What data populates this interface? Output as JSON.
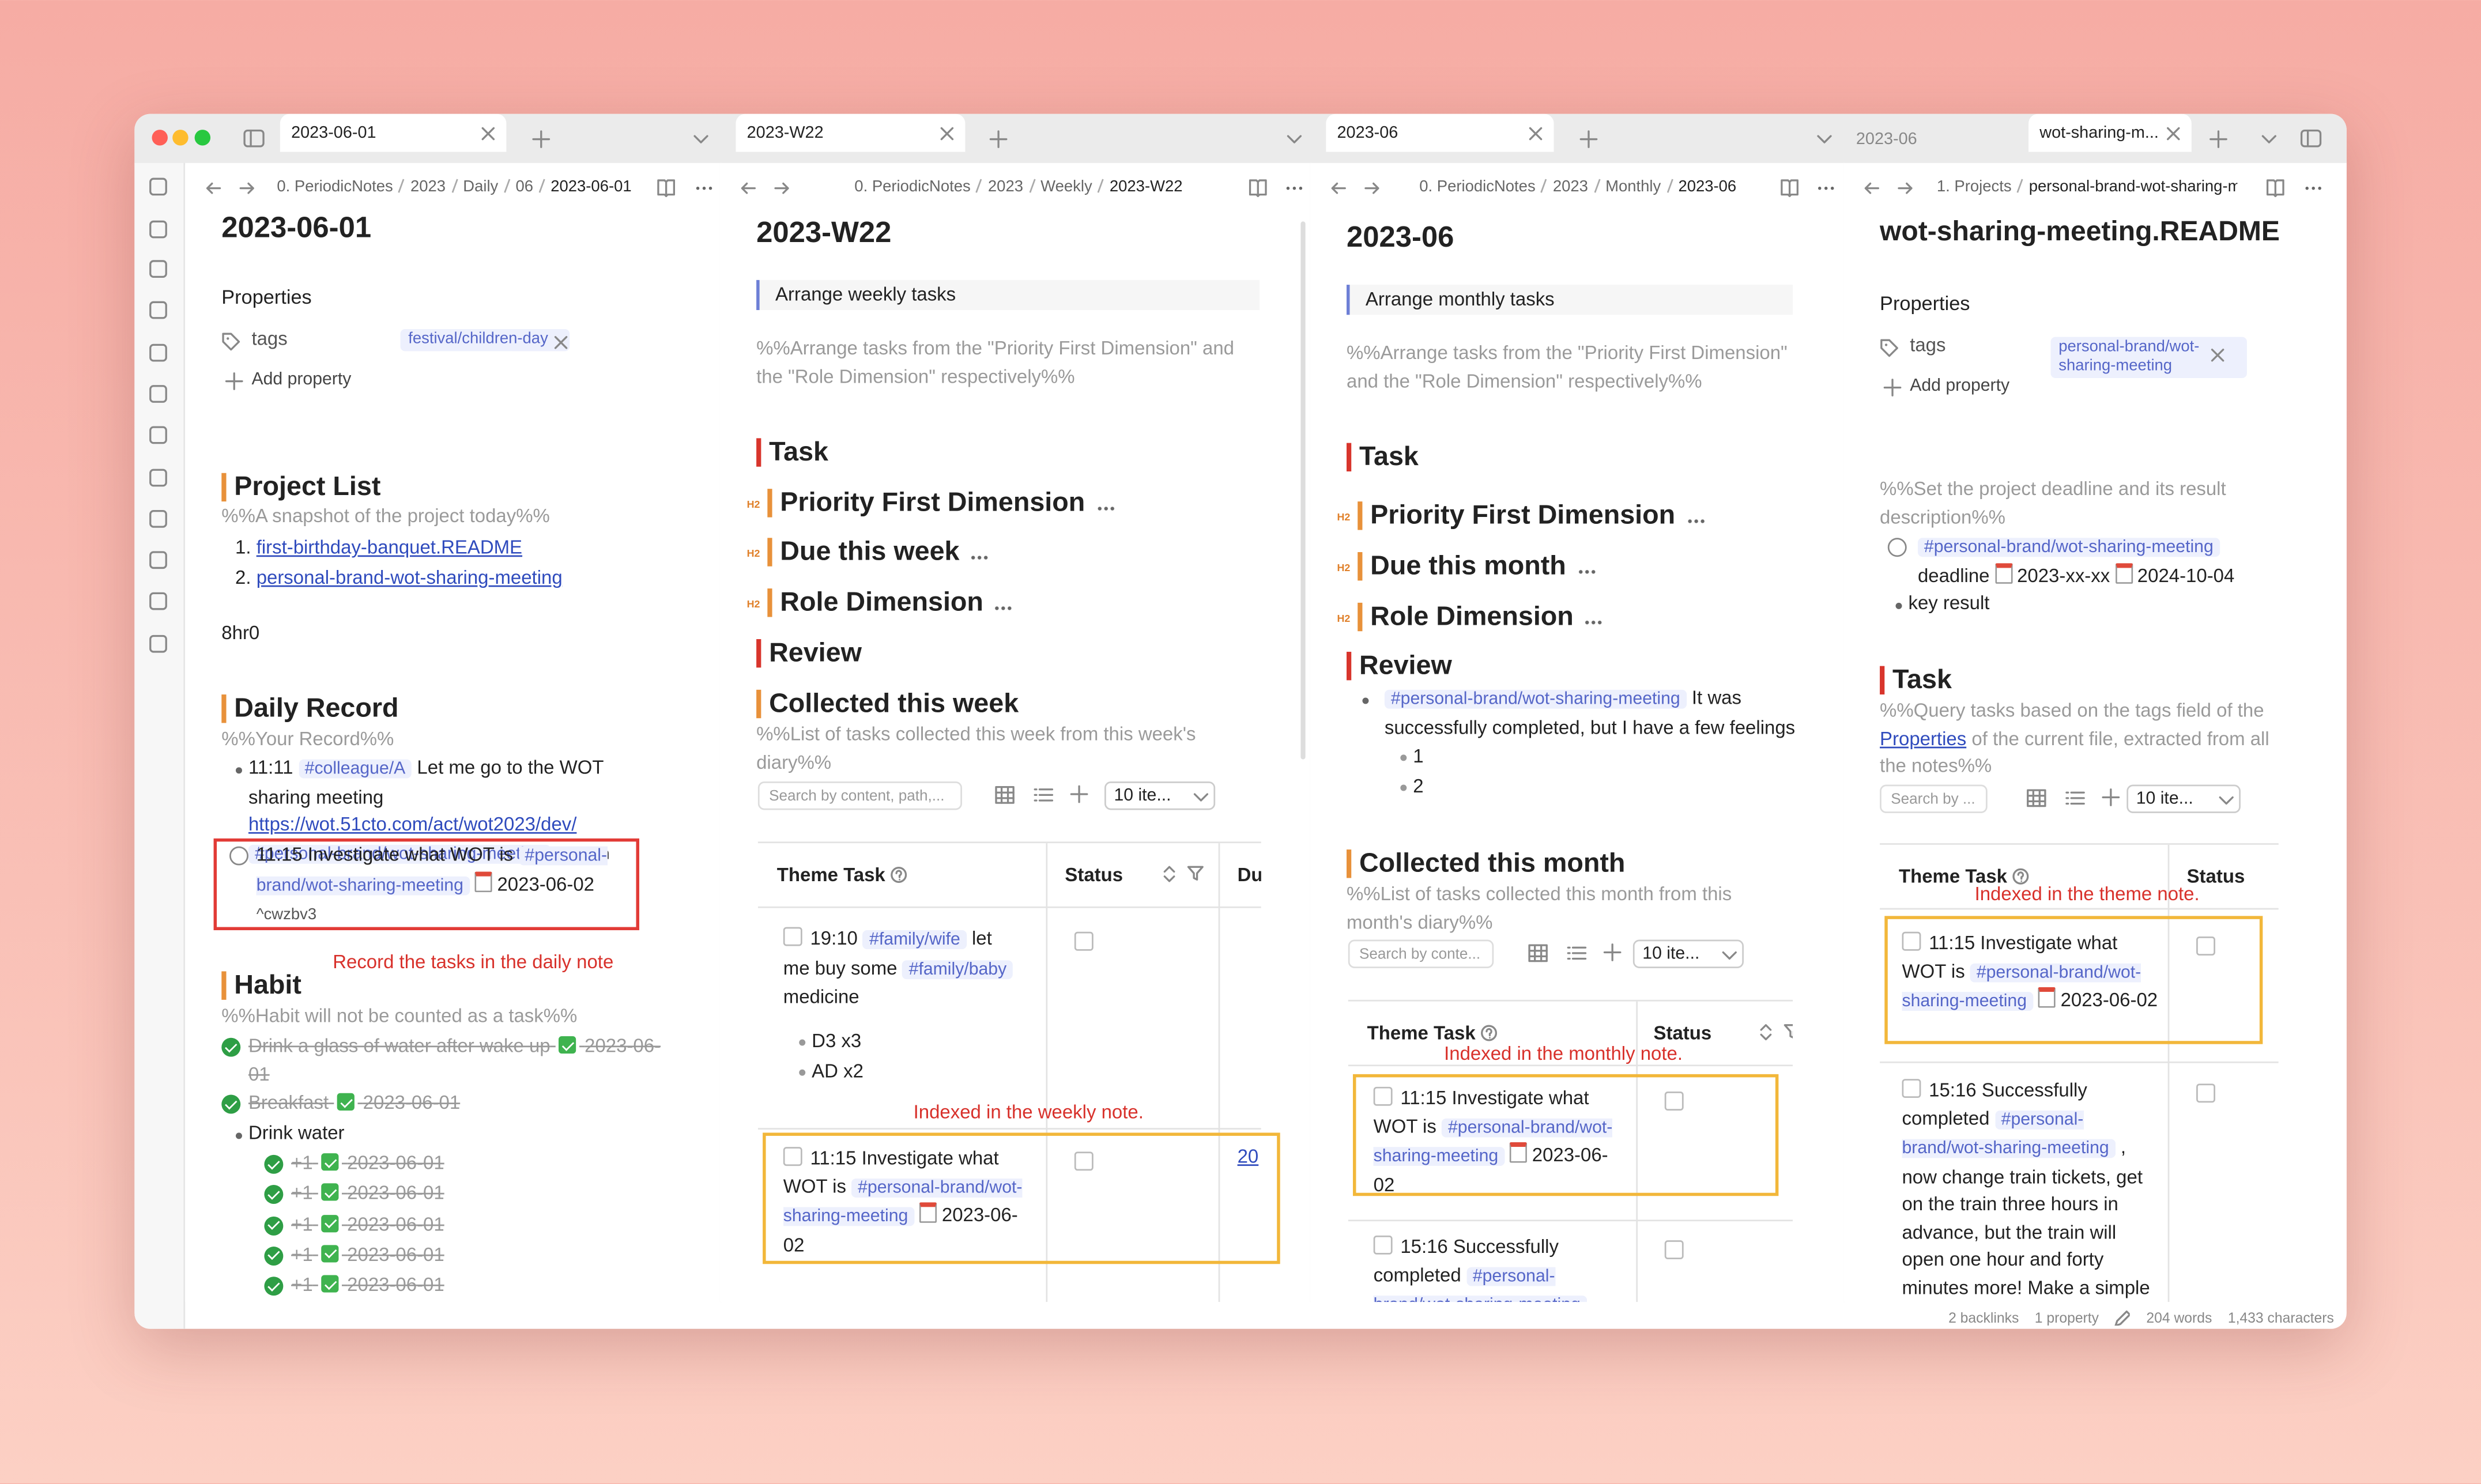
{
  "tabs": [
    "2023-06-01",
    "2023-W22",
    "2023-06",
    "2023-06",
    "wot-sharing-m..."
  ],
  "panes": [
    {
      "breadcrumb": [
        "0. PeriodicNotes",
        "2023",
        "Daily",
        "06",
        "2023-06-01"
      ],
      "title": "2023-06-01",
      "properties": {
        "heading": "Properties",
        "key": "tags",
        "value": "festival/children-day",
        "add": "Add property"
      },
      "project_list": {
        "heading": "Project List",
        "comment": "%%A snapshot of the project today%%",
        "items": [
          "first-birthday-banquet.README",
          "personal-brand-wot-sharing-meeting"
        ]
      },
      "text": "8hr0",
      "daily_record": {
        "heading": "Daily Record",
        "comment": "%%Your Record%%",
        "entry": [
          "11:11",
          "#colleague/A",
          "Let me go to the WOT sharing meeting",
          "https://wot.51cto.com/act/wot2023/dev/",
          "#personal-brand/wot-sharing-meeting",
          "^jc2adn"
        ],
        "task": [
          "11:15 Investigate what WOT is",
          "#personal-brand/wot-sharing-meeting",
          "2023-06-02",
          "^cwzbv3"
        ],
        "annotation": "Record the tasks in the daily note"
      },
      "habit": {
        "heading": "Habit",
        "comment": "%%Habit will not be counted as a task%%",
        "items": [
          {
            "text": "Drink a glass of water after wake up",
            "date": "2023-06-01"
          },
          {
            "text": "Breakfast",
            "date": "2023-06-01"
          }
        ],
        "group": "Drink water",
        "sub": [
          {
            "text": "+1",
            "date": "2023-06-01"
          },
          {
            "text": "+1",
            "date": "2023-06-01"
          },
          {
            "text": "+1",
            "date": "2023-06-01"
          },
          {
            "text": "+1",
            "date": "2023-06-01"
          },
          {
            "text": "+1",
            "date": "2023-06-01"
          }
        ]
      }
    },
    {
      "breadcrumb": [
        "0. PeriodicNotes",
        "2023",
        "Weekly",
        "2023-W22"
      ],
      "title": "2023-W22",
      "callout": "Arrange weekly tasks",
      "comment": "%%Arrange tasks from the \"Priority First Dimension\" and the \"Role Dimension\" respectively%%",
      "task_heading": "Task",
      "subheadings": [
        {
          "level": "H2",
          "text": "Priority First Dimension"
        },
        {
          "level": "H2",
          "text": "Due this week"
        },
        {
          "level": "H2",
          "text": "Role Dimension"
        }
      ],
      "review_heading": "Review",
      "collected": {
        "heading": "Collected this week",
        "comment": "%%List of tasks collected this week from this week's diary%%",
        "search": "Search by content, path,...",
        "page_size": "10 ite...",
        "columns": [
          "Theme Task",
          "Status",
          "Du"
        ],
        "rows": [
          {
            "task": [
              "19:10",
              "#family/wife",
              "let me buy some",
              "#family/baby",
              "medicine"
            ],
            "sub": [
              "D3 x3",
              "AD x2"
            ]
          },
          {
            "task": [
              "11:15 Investigate what WOT is",
              "#personal-brand/wot-sharing-meeting",
              "2023-06-02"
            ],
            "due": "20"
          }
        ],
        "annotation": "Indexed in the weekly note."
      }
    },
    {
      "breadcrumb": [
        "0. PeriodicNotes",
        "2023",
        "Monthly",
        "2023-06"
      ],
      "title": "2023-06",
      "callout": "Arrange monthly tasks",
      "comment": "%%Arrange tasks from the \"Priority First Dimension\" and the \"Role Dimension\" respectively%%",
      "task_heading": "Task",
      "subheadings": [
        {
          "level": "H2",
          "text": "Priority First Dimension"
        },
        {
          "level": "H2",
          "text": "Due this month"
        },
        {
          "level": "H2",
          "text": "Role Dimension"
        }
      ],
      "review_heading": "Review",
      "review_list": {
        "item": [
          "#personal-brand/wot-sharing-meeting",
          "It was successfully completed, but I have a few feelings"
        ],
        "sub": [
          "1",
          "2"
        ]
      },
      "collected": {
        "heading": "Collected this month",
        "comment": "%%List of tasks collected this month from this month's diary%%",
        "search": "Search by conte...",
        "page_size": "10 ite...",
        "columns": [
          "Theme Task",
          "Status"
        ],
        "rows": [
          [
            "11:15 Investigate what WOT is",
            "#personal-brand/wot-sharing-meeting",
            "2023-06-02"
          ],
          [
            "15:16 Successfully completed",
            "#personal-brand/wot-sharing-meeting"
          ]
        ],
        "annotation": "Indexed in the monthly note."
      }
    },
    {
      "breadcrumb": [
        "1. Projects",
        "personal-brand-wot-sharing-meeting"
      ],
      "title": "wot-sharing-meeting.README",
      "properties": {
        "heading": "Properties",
        "key": "tags",
        "value": "personal-brand/wot-sharing-meeting",
        "add": "Add property"
      },
      "comment": "%%Set the project deadline and its result description%%",
      "task": [
        "#personal-brand/wot-sharing-meeting",
        "deadline",
        "2023-xx-xx",
        "2024-10-04"
      ],
      "bullet": "key result",
      "task_section": {
        "heading": "Task",
        "comment": [
          "%%Query tasks based on the tags field of the",
          "Properties",
          "of the current file, extracted from all the notes%%"
        ],
        "search": "Search by ...",
        "page_size": "10 ite...",
        "columns": [
          "Theme Task",
          "Status"
        ],
        "rows": [
          [
            "11:15 Investigate what WOT is",
            "#personal-brand/wot-sharing-meeting",
            "2023-06-02"
          ],
          [
            "15:16 Successfully completed",
            "#personal-brand/wot-sharing-meeting",
            ", now change train tickets, get on the train three hours in advance, but the train will open one hour and forty minutes more! Make a simple"
          ]
        ],
        "annotation": "Indexed in the theme note."
      }
    }
  ],
  "status_bar": [
    "2 backlinks",
    "1 property",
    "204 words",
    "1,433 characters"
  ]
}
